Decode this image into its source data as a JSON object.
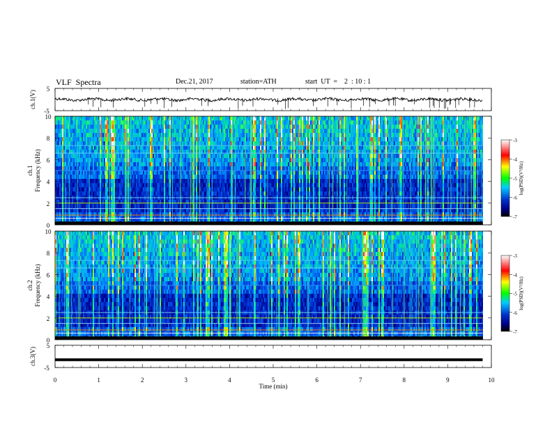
{
  "header": {
    "title": "VLF  Spectra",
    "date": "Dec.21, 2017",
    "station": "station=ATH",
    "start_ut": "start  UT  =    2  : 10 : 1"
  },
  "chart_data": [
    {
      "type": "line",
      "panel": "ch1-waveform",
      "ylabel": "ch.1(V)",
      "xlabel": "",
      "xlim": [
        0,
        10
      ],
      "ylim": [
        -5,
        5
      ],
      "ytick_labels": [
        "5",
        "-5"
      ],
      "series": [
        {
          "x": [
            0,
            9.8
          ],
          "y": [
            0,
            0
          ]
        }
      ]
    },
    {
      "type": "heatmap",
      "panel": "ch1-spectrogram",
      "ylabel": "ch.1\nFrequency (kHz)",
      "xlim": [
        0,
        10
      ],
      "ylim": [
        0,
        10
      ],
      "ytick_labels": [
        "0",
        "2",
        "4",
        "6",
        "8",
        "10"
      ],
      "data_xlim": [
        0,
        9.8
      ],
      "colorbar": {
        "label": "log(PSD)(V²/Hz)",
        "ticks": [
          "-3",
          "-4",
          "-5",
          "-6",
          "-7"
        ],
        "range": [
          -7,
          -3
        ]
      }
    },
    {
      "type": "heatmap",
      "panel": "ch2-spectrogram",
      "ylabel": "ch.2\nFrequency (kHz)",
      "xlim": [
        0,
        10
      ],
      "ylim": [
        0,
        10
      ],
      "ytick_labels": [
        "0",
        "2",
        "4",
        "6",
        "8",
        "10"
      ],
      "data_xlim": [
        0,
        9.8
      ],
      "colorbar": {
        "label": "log(PSD)(V²/Hz)",
        "ticks": [
          "-3",
          "-4",
          "-5",
          "-6",
          "-7"
        ],
        "range": [
          -7,
          -3
        ]
      }
    },
    {
      "type": "line",
      "panel": "ch3-waveform",
      "ylabel": "ch.3(V)",
      "xlabel": "Time  (min)",
      "xlim": [
        0,
        10
      ],
      "ylim": [
        -5,
        5
      ],
      "ytick_labels": [
        "5",
        "-5"
      ],
      "xtick_labels": [
        "0",
        "1",
        "2",
        "3",
        "4",
        "5",
        "6",
        "7",
        "8",
        "9",
        "10"
      ],
      "series": [
        {
          "x": [
            0,
            9.8
          ],
          "y": [
            -1.5,
            -1.5
          ]
        }
      ]
    }
  ]
}
